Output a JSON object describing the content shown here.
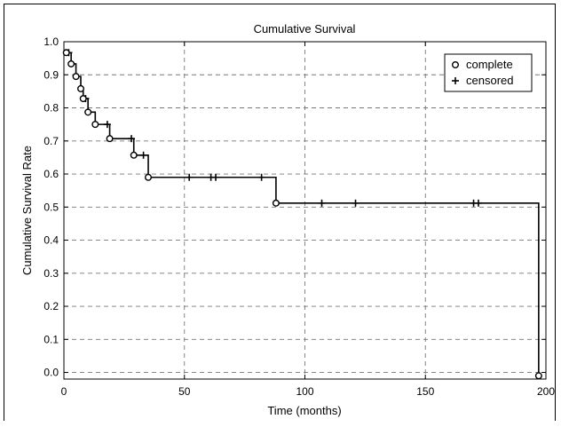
{
  "chart_data": {
    "type": "line",
    "title": "Cumulative Survival",
    "xlabel": "Time (months)",
    "ylabel": "Cumulative Survival Rate",
    "xlim": [
      0,
      200
    ],
    "ylim": [
      -0.02,
      1.0
    ],
    "xticks": [
      "0",
      "50",
      "100",
      "150",
      "200"
    ],
    "yticks": [
      "0.0",
      "0.1",
      "0.2",
      "0.3",
      "0.4",
      "0.5",
      "0.6",
      "0.7",
      "0.8",
      "0.9",
      "1.0"
    ],
    "grid": true,
    "legend_position": "top-right",
    "legend": [
      {
        "marker": "circle",
        "label": "complete"
      },
      {
        "marker": "plus",
        "label": "censored"
      }
    ],
    "series": [
      {
        "type": "step",
        "x": [
          0,
          1,
          3,
          5,
          7,
          8,
          10,
          13,
          19,
          29,
          35,
          88,
          197
        ],
        "y": [
          0.967,
          0.967,
          0.933,
          0.895,
          0.858,
          0.828,
          0.787,
          0.75,
          0.707,
          0.657,
          0.59,
          0.512,
          0.0
        ]
      }
    ],
    "complete_events": [
      {
        "x": 1,
        "y": 0.967
      },
      {
        "x": 3,
        "y": 0.933
      },
      {
        "x": 5,
        "y": 0.895
      },
      {
        "x": 7,
        "y": 0.858
      },
      {
        "x": 8,
        "y": 0.828
      },
      {
        "x": 10,
        "y": 0.787
      },
      {
        "x": 13,
        "y": 0.75
      },
      {
        "x": 19,
        "y": 0.707
      },
      {
        "x": 29,
        "y": 0.657
      },
      {
        "x": 35,
        "y": 0.59
      },
      {
        "x": 88,
        "y": 0.512
      },
      {
        "x": 197,
        "y": -0.01
      }
    ],
    "censored_events": [
      {
        "x": 2,
        "y": 0.967
      },
      {
        "x": 9,
        "y": 0.828
      },
      {
        "x": 18,
        "y": 0.75
      },
      {
        "x": 28,
        "y": 0.707
      },
      {
        "x": 33,
        "y": 0.657
      },
      {
        "x": 52,
        "y": 0.59
      },
      {
        "x": 61,
        "y": 0.59
      },
      {
        "x": 63,
        "y": 0.59
      },
      {
        "x": 82,
        "y": 0.59
      },
      {
        "x": 107,
        "y": 0.512
      },
      {
        "x": 121,
        "y": 0.512
      },
      {
        "x": 170,
        "y": 0.512
      },
      {
        "x": 172,
        "y": 0.512
      }
    ]
  }
}
